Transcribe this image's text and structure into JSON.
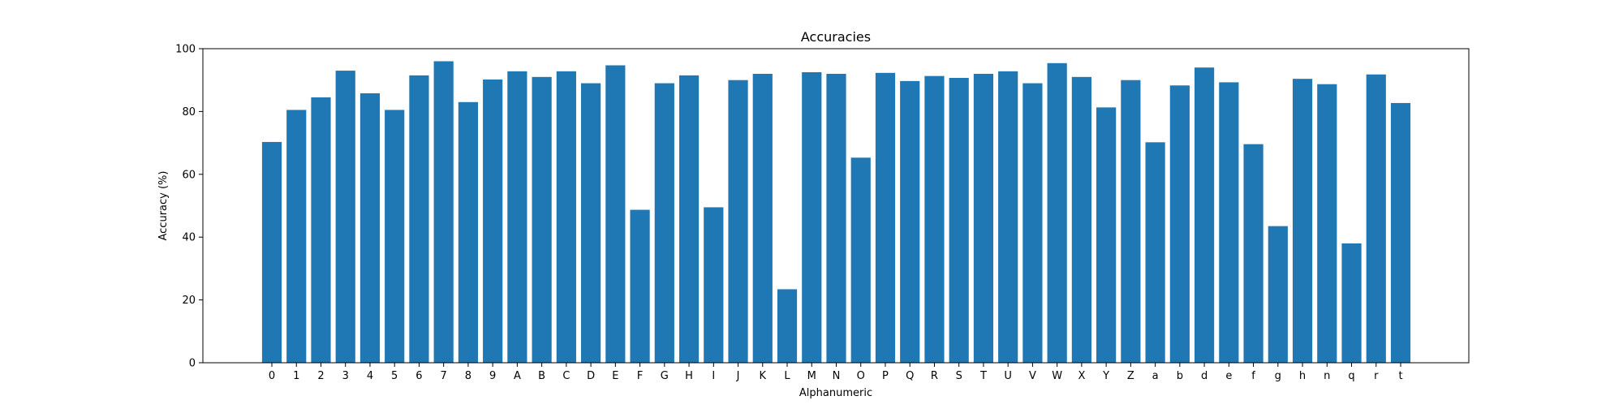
{
  "chart_data": {
    "type": "bar",
    "title": "Accuracies",
    "xlabel": "Alphanumeric",
    "ylabel": "Accuracy (%)",
    "ylim": [
      0,
      100
    ],
    "yticks": [
      0,
      20,
      40,
      60,
      80,
      100
    ],
    "grid": false,
    "legend": "none",
    "bar_color": "#1f77b4",
    "categories": [
      "0",
      "1",
      "2",
      "3",
      "4",
      "5",
      "6",
      "7",
      "8",
      "9",
      "A",
      "B",
      "C",
      "D",
      "E",
      "F",
      "G",
      "H",
      "I",
      "J",
      "K",
      "L",
      "M",
      "N",
      "O",
      "P",
      "Q",
      "R",
      "S",
      "T",
      "U",
      "V",
      "W",
      "X",
      "Y",
      "Z",
      "a",
      "b",
      "d",
      "e",
      "f",
      "g",
      "h",
      "n",
      "q",
      "r",
      "t"
    ],
    "values": [
      70.3,
      80.5,
      84.5,
      93.0,
      85.8,
      80.5,
      91.5,
      96.0,
      83.0,
      90.2,
      92.8,
      91.0,
      92.8,
      89.0,
      94.7,
      48.7,
      89.0,
      91.5,
      49.5,
      90.0,
      92.0,
      23.4,
      92.5,
      92.0,
      65.3,
      92.3,
      89.7,
      91.3,
      90.7,
      92.0,
      92.8,
      89.0,
      95.4,
      91.0,
      81.3,
      90.0,
      70.2,
      88.3,
      94.0,
      89.3,
      69.6,
      43.5,
      90.4,
      88.7,
      38.0,
      91.8,
      82.7
    ]
  }
}
